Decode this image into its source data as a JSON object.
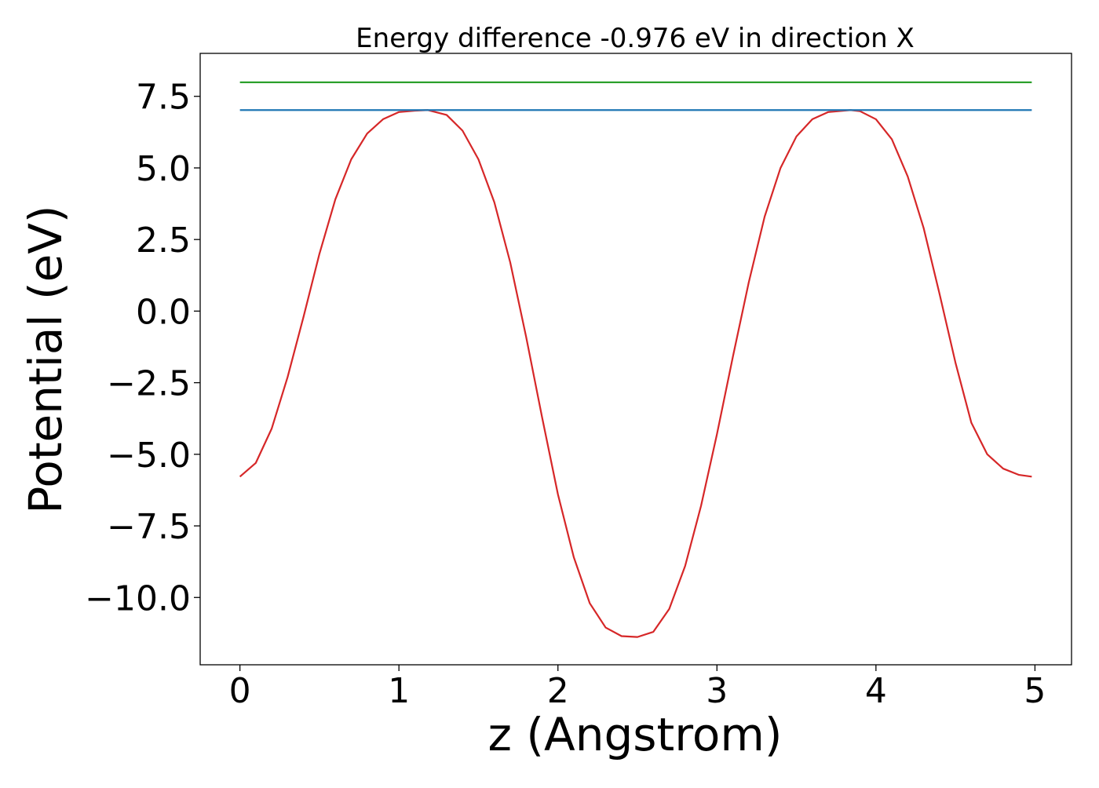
{
  "chart_data": {
    "type": "line",
    "title": "Energy difference -0.976 eV in direction X",
    "xlabel": "z (Angstrom)",
    "ylabel": "Potential (eV)",
    "xlim": [
      -0.25,
      5.23
    ],
    "ylim": [
      -12.35,
      9.0
    ],
    "xticks": [
      0,
      1,
      2,
      3,
      4,
      5
    ],
    "xtick_labels": [
      "0",
      "1",
      "2",
      "3",
      "4",
      "5"
    ],
    "yticks": [
      -10.0,
      -7.5,
      -5.0,
      -2.5,
      0.0,
      2.5,
      5.0,
      7.5
    ],
    "ytick_labels": [
      "−10.0",
      "−7.5",
      "−5.0",
      "−2.5",
      "0.0",
      "2.5",
      "5.0",
      "7.5"
    ],
    "grid": false,
    "series": [
      {
        "color": "#d62728",
        "x": [
          0.0,
          0.1,
          0.2,
          0.3,
          0.4,
          0.5,
          0.6,
          0.7,
          0.8,
          0.9,
          1.0,
          1.1,
          1.18,
          1.3,
          1.4,
          1.5,
          1.6,
          1.7,
          1.8,
          1.9,
          2.0,
          2.1,
          2.2,
          2.3,
          2.4,
          2.5,
          2.6,
          2.7,
          2.8,
          2.9,
          3.0,
          3.1,
          3.2,
          3.3,
          3.4,
          3.5,
          3.6,
          3.7,
          3.84,
          3.9,
          4.0,
          4.1,
          4.2,
          4.3,
          4.4,
          4.5,
          4.6,
          4.7,
          4.8,
          4.9,
          4.98
        ],
        "values": [
          -5.78,
          -5.3,
          -4.1,
          -2.3,
          -0.2,
          2.0,
          3.9,
          5.3,
          6.2,
          6.7,
          6.95,
          7.0,
          7.02,
          6.85,
          6.3,
          5.3,
          3.8,
          1.7,
          -0.9,
          -3.7,
          -6.4,
          -8.6,
          -10.2,
          -11.05,
          -11.35,
          -11.38,
          -11.2,
          -10.4,
          -8.9,
          -6.8,
          -4.3,
          -1.6,
          1.0,
          3.3,
          5.0,
          6.1,
          6.7,
          6.95,
          7.02,
          6.98,
          6.7,
          6.0,
          4.7,
          2.9,
          0.6,
          -1.8,
          -3.9,
          -5.0,
          -5.5,
          -5.72,
          -5.78
        ]
      },
      {
        "color": "#1f77b4",
        "x": [
          0.0,
          4.98
        ],
        "values": [
          7.02,
          7.02
        ]
      },
      {
        "color": "#2ca02c",
        "x": [
          0.0,
          4.98
        ],
        "values": [
          7.99,
          7.99
        ]
      }
    ]
  }
}
